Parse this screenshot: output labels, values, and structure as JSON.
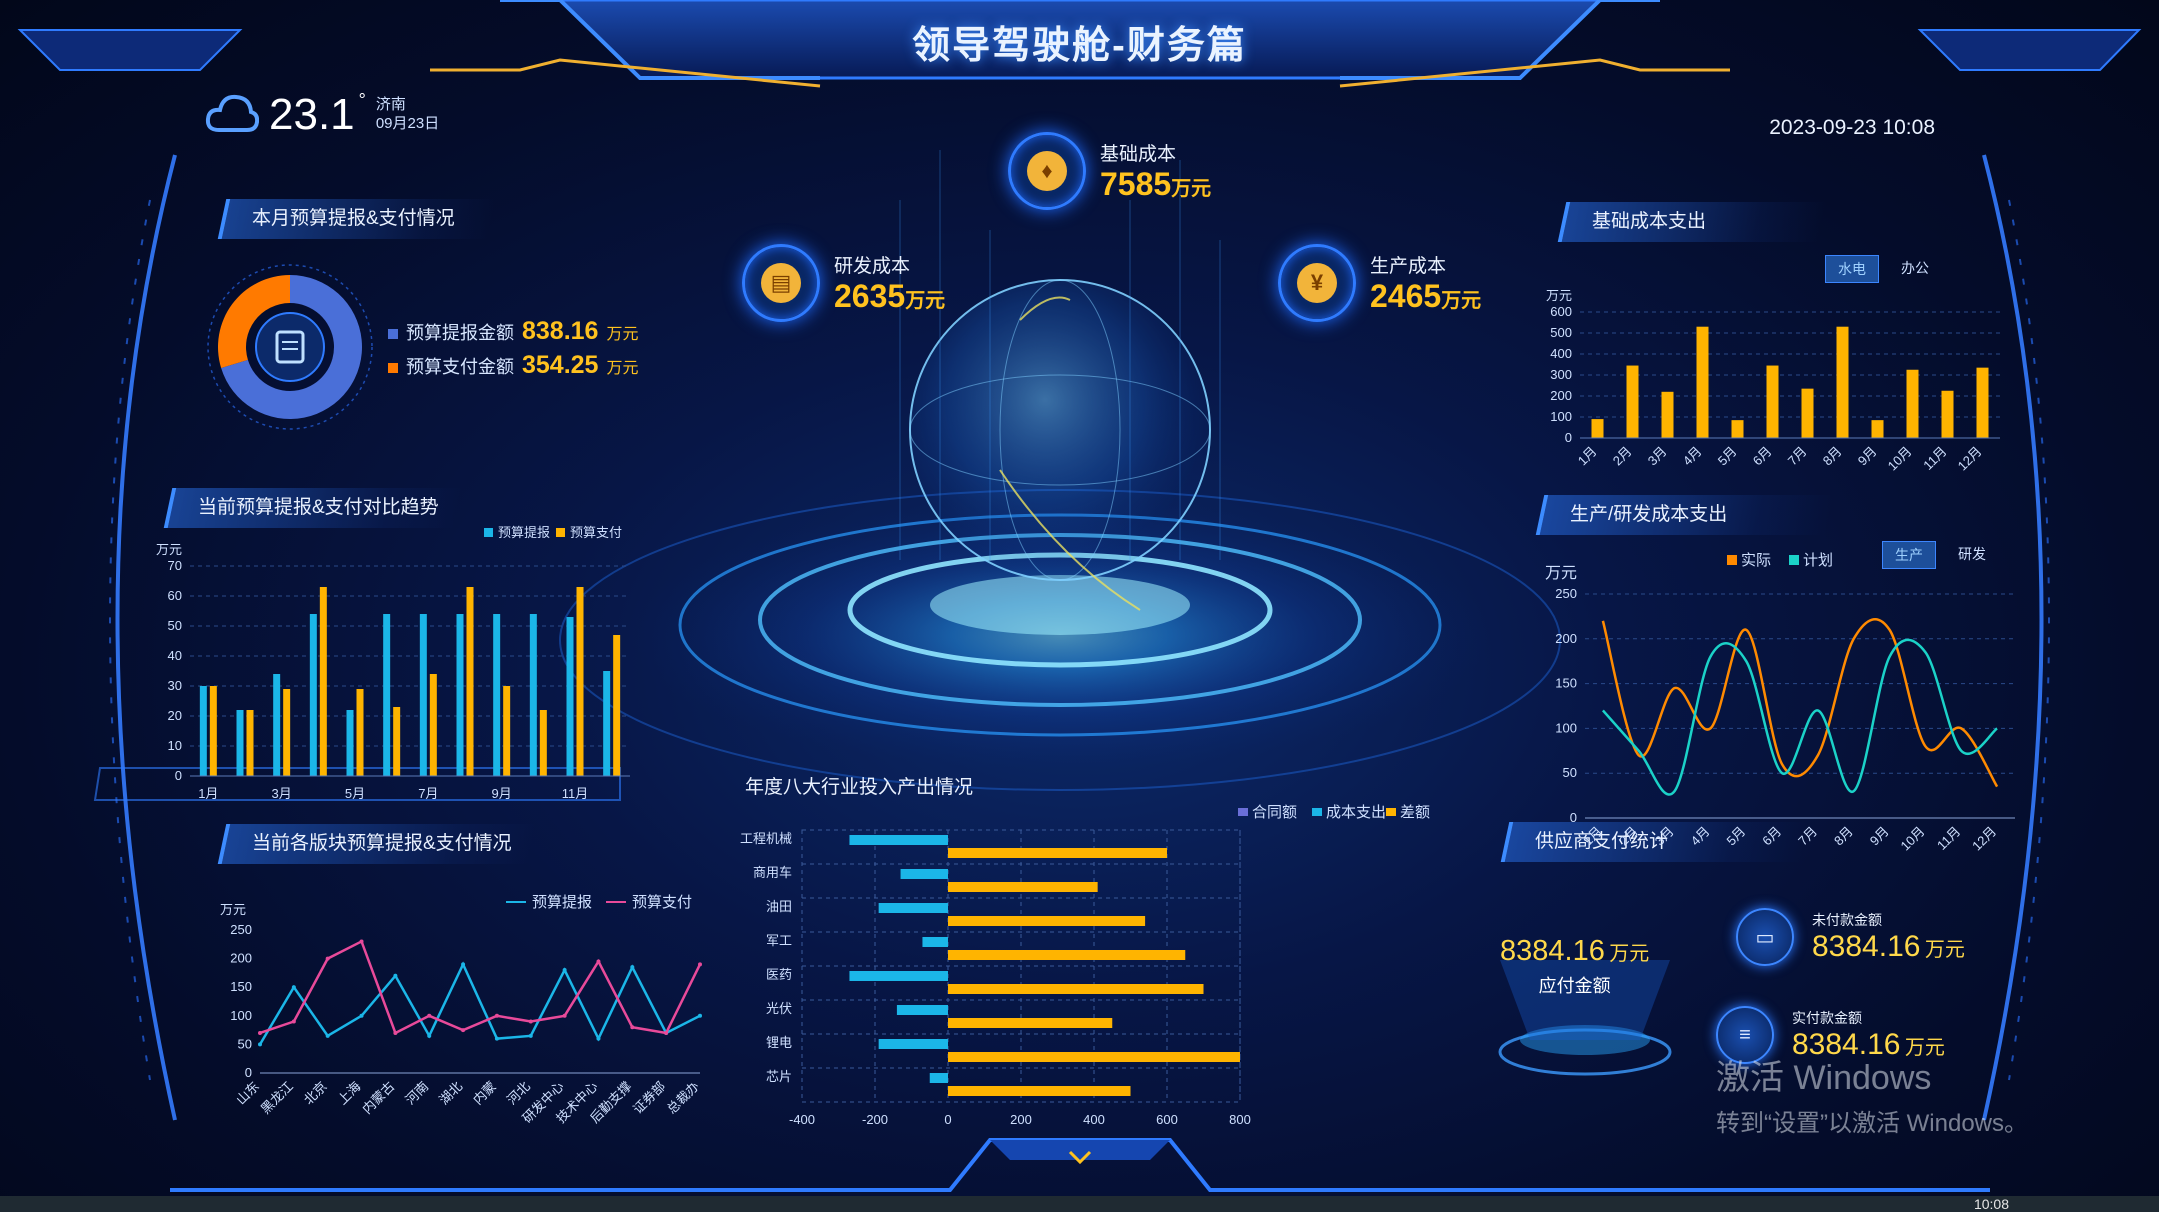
{
  "header": {
    "title": "领导驾驶舱-财务篇",
    "temperature": "23.1",
    "degree": "°",
    "city": "济南",
    "date_short": "09月23日",
    "datetime": "2023-09-23 10:08"
  },
  "kpis": {
    "base": {
      "label": "基础成本",
      "value": "7585",
      "unit": "万元"
    },
    "rd": {
      "label": "研发成本",
      "value": "2635",
      "unit": "万元"
    },
    "production": {
      "label": "生产成本",
      "value": "2465",
      "unit": "万元"
    }
  },
  "panels": {
    "budget_month": "本月预算提报&支付情况",
    "trend": "当前预算提报&支付对比趋势",
    "sections": "当前各版块预算提报&支付情况",
    "industry": "年度八大行业投入产出情况",
    "base_cost": "基础成本支出",
    "prod_rd": "生产/研发成本支出",
    "supplier": "供应商支付统计"
  },
  "donut": {
    "items": [
      {
        "label": "预算提报金额",
        "value": "838.16",
        "unit": "万元",
        "color": "#4a6fd8"
      },
      {
        "label": "预算支付金额",
        "value": "354.25",
        "unit": "万元",
        "color": "#ff7a00"
      }
    ]
  },
  "toggles": {
    "base_cost": [
      "水电",
      "办公"
    ],
    "prod_rd": [
      "生产",
      "研发"
    ]
  },
  "supplier": {
    "total": {
      "value": "8384.16",
      "unit": "万元",
      "label": "应付金额"
    },
    "unpaid": {
      "label": "未付款金额",
      "value": "8384.16",
      "unit": "万元"
    },
    "paid": {
      "label": "实付款金额",
      "value": "8384.16",
      "unit": "万元"
    }
  },
  "watermark": {
    "line1": "激活 Windows",
    "line2": "转到“设置”以激活 Windows。"
  },
  "taskbar": {
    "time": "10:08"
  },
  "chart_data": [
    {
      "id": "trend",
      "type": "bar",
      "ylabel": "万元",
      "ylim": [
        0,
        70
      ],
      "yticks": [
        0,
        10,
        20,
        30,
        40,
        50,
        60,
        70
      ],
      "categories": [
        "1月",
        "2月",
        "3月",
        "4月",
        "5月",
        "6月",
        "7月",
        "8月",
        "9月",
        "10月",
        "11月",
        "12月"
      ],
      "xtick_labels": [
        "1月",
        "3月",
        "5月",
        "7月",
        "9月",
        "11月"
      ],
      "series": [
        {
          "name": "预算提报",
          "color": "#1bb6e8",
          "values": [
            30,
            22,
            34,
            54,
            22,
            54,
            54,
            54,
            54,
            54,
            53,
            35
          ]
        },
        {
          "name": "预算支付",
          "color": "#ffb400",
          "values": [
            30,
            22,
            29,
            63,
            29,
            23,
            34,
            63,
            30,
            22,
            63,
            47
          ]
        }
      ],
      "legend": "top-right"
    },
    {
      "id": "sections",
      "type": "line",
      "ylabel": "万元",
      "ylim": [
        0,
        250
      ],
      "yticks": [
        0,
        50,
        100,
        150,
        200,
        250
      ],
      "categories": [
        "山东",
        "黑龙江",
        "北京",
        "上海",
        "内蒙古",
        "河南",
        "湖北",
        "内蒙",
        "河北",
        "研发中心",
        "技术中心",
        "后勤支撑",
        "证券部",
        "总裁办"
      ],
      "series": [
        {
          "name": "预算提报",
          "color": "#1bb6e8",
          "values": [
            50,
            150,
            65,
            100,
            170,
            65,
            190,
            60,
            65,
            180,
            60,
            185,
            70,
            100
          ]
        },
        {
          "name": "预算支付",
          "color": "#e84a9a",
          "values": [
            70,
            90,
            200,
            230,
            70,
            100,
            75,
            100,
            90,
            100,
            195,
            80,
            70,
            190
          ]
        }
      ],
      "legend": "top-right"
    },
    {
      "id": "industry",
      "type": "bar",
      "orientation": "horizontal",
      "categories": [
        "工程机械",
        "商用车",
        "油田",
        "军工",
        "医药",
        "光伏",
        "锂电",
        "芯片"
      ],
      "xlim": [
        -400,
        800
      ],
      "xticks": [
        -400,
        -200,
        0,
        200,
        400,
        600,
        800
      ],
      "series": [
        {
          "name": "合同额",
          "color": "#6a6fd8",
          "values": [
            0,
            0,
            0,
            0,
            0,
            0,
            0,
            0
          ]
        },
        {
          "name": "成本支出",
          "color": "#1bb6e8",
          "values": [
            -270,
            -130,
            -190,
            -70,
            -270,
            -140,
            -190,
            -50
          ]
        },
        {
          "name": "差额",
          "color": "#ffb400",
          "values": [
            600,
            410,
            540,
            650,
            700,
            450,
            800,
            500
          ]
        }
      ],
      "legend": "top-right"
    },
    {
      "id": "base_cost",
      "type": "bar",
      "ylabel": "万元",
      "ylim": [
        0,
        600
      ],
      "yticks": [
        0,
        100,
        200,
        300,
        400,
        500,
        600
      ],
      "categories": [
        "1月",
        "2月",
        "3月",
        "4月",
        "5月",
        "6月",
        "7月",
        "8月",
        "9月",
        "10月",
        "11月",
        "12月"
      ],
      "series": [
        {
          "name": "",
          "color": "#ffb400",
          "values": [
            90,
            345,
            220,
            530,
            85,
            345,
            235,
            530,
            85,
            325,
            225,
            335
          ]
        }
      ]
    },
    {
      "id": "prod_rd",
      "type": "line",
      "ylabel": "万元",
      "ylim": [
        0,
        250
      ],
      "yticks": [
        0,
        50,
        100,
        150,
        200,
        250
      ],
      "categories": [
        "1月",
        "2月",
        "3月",
        "4月",
        "5月",
        "6月",
        "7月",
        "8月",
        "9月",
        "10月",
        "11月",
        "12月"
      ],
      "series": [
        {
          "name": "实际",
          "color": "#ff8a00",
          "values": [
            220,
            70,
            145,
            100,
            210,
            60,
            70,
            200,
            210,
            80,
            100,
            35
          ]
        },
        {
          "name": "计划",
          "color": "#1bd2c8",
          "values": [
            120,
            75,
            30,
            180,
            175,
            50,
            120,
            30,
            180,
            185,
            75,
            100
          ]
        }
      ],
      "legend": "top-left"
    }
  ]
}
